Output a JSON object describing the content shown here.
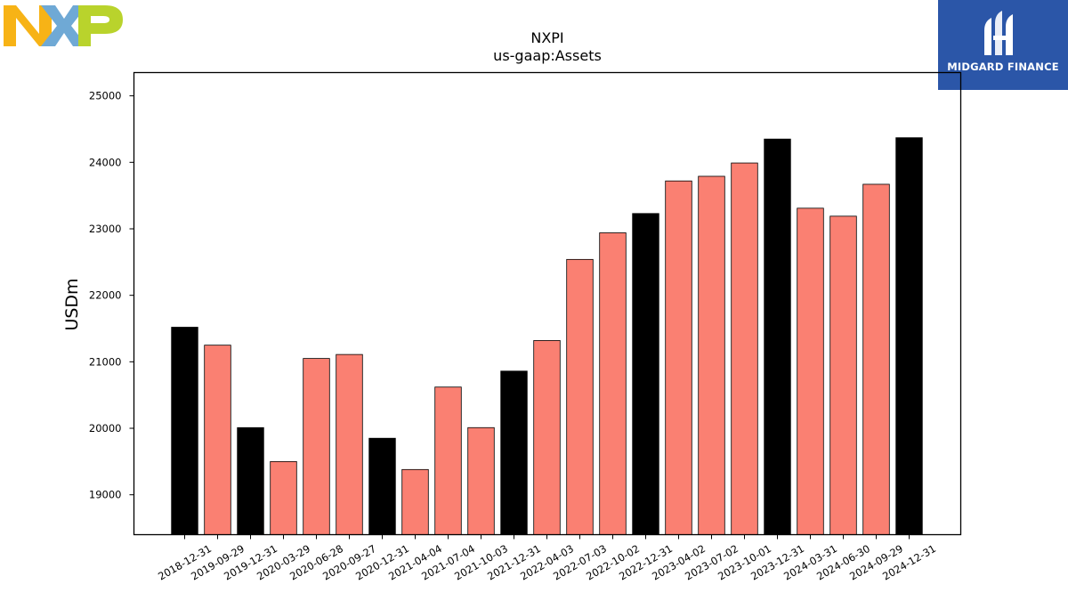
{
  "branding": {
    "ticker_logo": "NXP",
    "badge_text": "MIDGARD FINANCE",
    "colors": {
      "n": "#f7b316",
      "x": "#6fa9d5",
      "p": "#b9d32c",
      "badge_bg": "#2b56a8"
    }
  },
  "chart_data": {
    "type": "bar",
    "title": "NXPI",
    "subtitle": "us-gaap:Assets",
    "xlabel": "",
    "ylabel": "USDm",
    "ylim": [
      18400,
      25350
    ],
    "yticks": [
      19000,
      20000,
      21000,
      22000,
      23000,
      24000,
      25000
    ],
    "grid": false,
    "legend": "none",
    "colors": {
      "annual": "#000000",
      "quarterly": "#fa8072",
      "edge": "#000000"
    },
    "categories": [
      "2018-12-31",
      "2019-09-29",
      "2019-12-31",
      "2020-03-29",
      "2020-06-28",
      "2020-09-27",
      "2020-12-31",
      "2021-04-04",
      "2021-07-04",
      "2021-10-03",
      "2021-12-31",
      "2022-04-03",
      "2022-07-03",
      "2022-10-02",
      "2022-12-31",
      "2023-04-02",
      "2023-07-02",
      "2023-10-01",
      "2023-12-31",
      "2024-03-31",
      "2024-06-30",
      "2024-09-29",
      "2024-12-31"
    ],
    "values": [
      21520,
      21250,
      20010,
      19500,
      21050,
      21110,
      19850,
      19380,
      20620,
      20010,
      20860,
      21320,
      22540,
      22940,
      23230,
      23720,
      23790,
      23990,
      24350,
      23310,
      23190,
      23670,
      24370
    ],
    "annual": [
      true,
      false,
      true,
      false,
      false,
      false,
      true,
      false,
      false,
      false,
      true,
      false,
      false,
      false,
      true,
      false,
      false,
      false,
      true,
      false,
      false,
      false,
      true
    ]
  }
}
